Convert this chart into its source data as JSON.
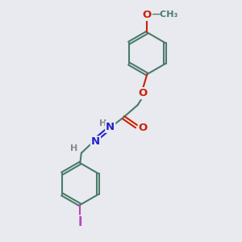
{
  "bg_color": "#e8eaf0",
  "bond_color": "#4a7a6a",
  "bond_width": 1.5,
  "atom_colors": {
    "O": "#cc2200",
    "N": "#2222cc",
    "I": "#bb44bb",
    "H": "#888888",
    "C": "#4a7a6a"
  },
  "font_size_atom": 9.5,
  "font_size_small": 8.0,
  "fig_width": 3.0,
  "fig_height": 3.0,
  "dpi": 100,
  "xlim": [
    0,
    10
  ],
  "ylim": [
    0,
    10
  ]
}
